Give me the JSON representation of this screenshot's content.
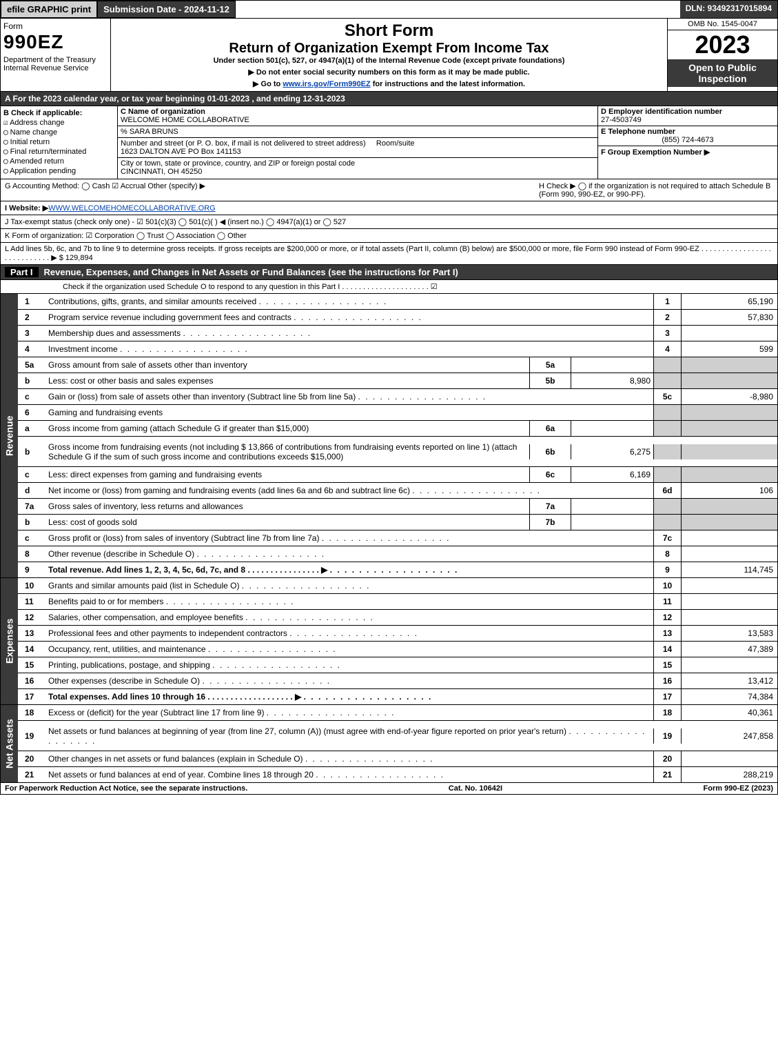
{
  "colors": {
    "dark": "#3a3a3a",
    "shade": "#cfcfcf",
    "link": "#0645ad"
  },
  "top": {
    "efile": "efile GRAPHIC print",
    "submission": "Submission Date - 2024-11-12",
    "dln": "DLN: 93492317015894"
  },
  "header": {
    "form_word": "Form",
    "form_no": "990EZ",
    "dept": "Department of the Treasury\nInternal Revenue Service",
    "title1": "Short Form",
    "title2": "Return of Organization Exempt From Income Tax",
    "sub": "Under section 501(c), 527, or 4947(a)(1) of the Internal Revenue Code (except private foundations)",
    "instr1": "▶ Do not enter social security numbers on this form as it may be made public.",
    "instr2_pre": "▶ Go to ",
    "instr2_link": "www.irs.gov/Form990EZ",
    "instr2_post": " for instructions and the latest information.",
    "omb": "OMB No. 1545-0047",
    "year": "2023",
    "open": "Open to Public Inspection"
  },
  "A": "A  For the 2023 calendar year, or tax year beginning 01-01-2023 , and ending 12-31-2023",
  "B": {
    "hdr": "B  Check if applicable:",
    "items": [
      "Address change",
      "Name change",
      "Initial return",
      "Final return/terminated",
      "Amended return",
      "Application pending"
    ],
    "checked": [
      true,
      false,
      false,
      false,
      false,
      false
    ]
  },
  "C": {
    "label": "C Name of organization",
    "name": "WELCOME HOME COLLABORATIVE",
    "care": "% SARA BRUNS",
    "street_label": "Number and street (or P. O. box, if mail is not delivered to street address)",
    "room_label": "Room/suite",
    "street": "1623 DALTON AVE PO Box 141153",
    "city_label": "City or town, state or province, country, and ZIP or foreign postal code",
    "city": "CINCINNATI, OH  45250"
  },
  "D": {
    "label": "D Employer identification number",
    "val": "27-4503749"
  },
  "E": {
    "label": "E Telephone number",
    "val": "(855) 724-4673"
  },
  "F": {
    "label": "F Group Exemption Number  ▶",
    "val": ""
  },
  "G": "G Accounting Method:   ◯ Cash   ☑ Accrual   Other (specify) ▶",
  "H": "H   Check ▶  ◯  if the organization is not required to attach Schedule B (Form 990, 990-EZ, or 990-PF).",
  "I_pre": "I Website: ▶",
  "I_link": "WWW.WELCOMEHOMECOLLABORATIVE.ORG",
  "J": "J Tax-exempt status (check only one) - ☑ 501(c)(3) ◯ 501(c)(  ) ◀ (insert no.) ◯ 4947(a)(1) or ◯ 527",
  "K": "K Form of organization:   ☑ Corporation   ◯ Trust   ◯ Association   ◯ Other",
  "L": "L Add lines 5b, 6c, and 7b to line 9 to determine gross receipts. If gross receipts are $200,000 or more, or if total assets (Part II, column (B) below) are $500,000 or more, file Form 990 instead of Form 990-EZ .  .  .  .  .  .  .  .  .  .  .  .  .  .  .  .  .  .  .  .  .  .  .  .  .  .  .  .  ▶ $ 129,894",
  "partI": {
    "title": "Revenue, Expenses, and Changes in Net Assets or Fund Balances (see the instructions for Part I)",
    "check": "Check if the organization used Schedule O to respond to any question in this Part I .  .  .  .  .  .  .  .  .  .  .  .  .  .  .  .  .  .  .  .  .  ☑"
  },
  "rev": [
    {
      "no": "1",
      "desc": "Contributions, gifts, grants, and similar amounts received",
      "out": "1",
      "val": "65,190"
    },
    {
      "no": "2",
      "desc": "Program service revenue including government fees and contracts",
      "out": "2",
      "val": "57,830"
    },
    {
      "no": "3",
      "desc": "Membership dues and assessments",
      "out": "3",
      "val": ""
    },
    {
      "no": "4",
      "desc": "Investment income",
      "out": "4",
      "val": "599"
    },
    {
      "no": "5a",
      "desc": "Gross amount from sale of assets other than inventory",
      "in": "5a",
      "inval": "",
      "shade": true
    },
    {
      "no": "b",
      "desc": "Less: cost or other basis and sales expenses",
      "in": "5b",
      "inval": "8,980",
      "shade": true
    },
    {
      "no": "c",
      "desc": "Gain or (loss) from sale of assets other than inventory (Subtract line 5b from line 5a)",
      "out": "5c",
      "val": "-8,980"
    },
    {
      "no": "6",
      "desc": "Gaming and fundraising events",
      "shade": true,
      "noout": true
    },
    {
      "no": "a",
      "desc": "Gross income from gaming (attach Schedule G if greater than $15,000)",
      "in": "6a",
      "inval": "",
      "shade": true
    },
    {
      "no": "b",
      "desc": "Gross income from fundraising events (not including $ 13,866 of contributions from fundraising events reported on line 1) (attach Schedule G if the sum of such gross income and contributions exceeds $15,000)",
      "in": "6b",
      "inval": "6,275",
      "shade": true,
      "tall": true
    },
    {
      "no": "c",
      "desc": "Less: direct expenses from gaming and fundraising events",
      "in": "6c",
      "inval": "6,169",
      "shade": true
    },
    {
      "no": "d",
      "desc": "Net income or (loss) from gaming and fundraising events (add lines 6a and 6b and subtract line 6c)",
      "out": "6d",
      "val": "106"
    },
    {
      "no": "7a",
      "desc": "Gross sales of inventory, less returns and allowances",
      "in": "7a",
      "inval": "",
      "shade": true
    },
    {
      "no": "b",
      "desc": "Less: cost of goods sold",
      "in": "7b",
      "inval": "",
      "shade": true
    },
    {
      "no": "c",
      "desc": "Gross profit or (loss) from sales of inventory (Subtract line 7b from line 7a)",
      "out": "7c",
      "val": ""
    },
    {
      "no": "8",
      "desc": "Other revenue (describe in Schedule O)",
      "out": "8",
      "val": ""
    },
    {
      "no": "9",
      "desc": "Total revenue. Add lines 1, 2, 3, 4, 5c, 6d, 7c, and 8   .  .  .  .  .  .  .  .  .  .  .  .  .  .  .  .  ▶",
      "out": "9",
      "val": "114,745",
      "bold": true
    }
  ],
  "exp": [
    {
      "no": "10",
      "desc": "Grants and similar amounts paid (list in Schedule O)",
      "out": "10",
      "val": ""
    },
    {
      "no": "11",
      "desc": "Benefits paid to or for members",
      "out": "11",
      "val": ""
    },
    {
      "no": "12",
      "desc": "Salaries, other compensation, and employee benefits",
      "out": "12",
      "val": ""
    },
    {
      "no": "13",
      "desc": "Professional fees and other payments to independent contractors",
      "out": "13",
      "val": "13,583"
    },
    {
      "no": "14",
      "desc": "Occupancy, rent, utilities, and maintenance",
      "out": "14",
      "val": "47,389"
    },
    {
      "no": "15",
      "desc": "Printing, publications, postage, and shipping",
      "out": "15",
      "val": ""
    },
    {
      "no": "16",
      "desc": "Other expenses (describe in Schedule O)",
      "out": "16",
      "val": "13,412"
    },
    {
      "no": "17",
      "desc": "Total expenses. Add lines 10 through 16    .  .  .  .  .  .  .  .  .  .  .  .  .  .  .  .  .  .  .  ▶",
      "out": "17",
      "val": "74,384",
      "bold": true
    }
  ],
  "net": [
    {
      "no": "18",
      "desc": "Excess or (deficit) for the year (Subtract line 17 from line 9)",
      "out": "18",
      "val": "40,361"
    },
    {
      "no": "19",
      "desc": "Net assets or fund balances at beginning of year (from line 27, column (A)) (must agree with end-of-year figure reported on prior year's return)",
      "out": "19",
      "val": "247,858",
      "tall": true
    },
    {
      "no": "20",
      "desc": "Other changes in net assets or fund balances (explain in Schedule O)",
      "out": "20",
      "val": ""
    },
    {
      "no": "21",
      "desc": "Net assets or fund balances at end of year. Combine lines 18 through 20",
      "out": "21",
      "val": "288,219"
    }
  ],
  "footer": {
    "left": "For Paperwork Reduction Act Notice, see the separate instructions.",
    "mid": "Cat. No. 10642I",
    "right": "Form 990-EZ (2023)"
  }
}
